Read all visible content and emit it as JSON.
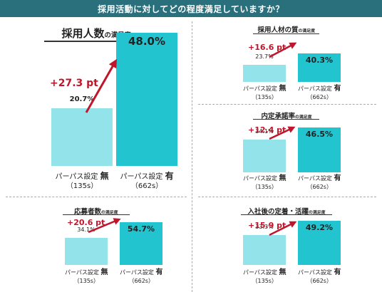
{
  "header": {
    "question": "採用活動に対してどの程度満足していますか？"
  },
  "colors": {
    "bar_without": "#93e3ea",
    "bar_with": "#22c4cf",
    "arrow": "#c0152a",
    "header_bg": "#2a6f7c"
  },
  "chart_data": [
    {
      "type": "bar",
      "title": "採用人数",
      "subtitle": "の満足度",
      "ylim": [
        0,
        100
      ],
      "categories": [
        {
          "label": "パーパス設定",
          "flag": "無",
          "n": "（135s）"
        },
        {
          "label": "パーパス設定",
          "flag": "有",
          "n": "（662s）"
        }
      ],
      "values": [
        20.7,
        48.0
      ],
      "value_labels": [
        "20.7%",
        "48.0%"
      ],
      "delta_label": "+27.3 pt"
    },
    {
      "type": "bar",
      "title": "採用人材の質",
      "subtitle": "の満足度",
      "ylim": [
        0,
        100
      ],
      "categories": [
        {
          "label": "パーパス設定",
          "flag": "無",
          "n": "（135s）"
        },
        {
          "label": "パーパス設定",
          "flag": "有",
          "n": "（662s）"
        }
      ],
      "values": [
        23.7,
        40.3
      ],
      "value_labels": [
        "23.7%",
        "40.3%"
      ],
      "delta_label": "+16.6 pt"
    },
    {
      "type": "bar",
      "title": "内定承諾率",
      "subtitle": "の満足度",
      "ylim": [
        0,
        100
      ],
      "categories": [
        {
          "label": "パーパス設定",
          "flag": "無",
          "n": "（135s）"
        },
        {
          "label": "パーパス設定",
          "flag": "有",
          "n": "（662s）"
        }
      ],
      "values": [
        34.1,
        46.5
      ],
      "value_labels": [
        "34.1%",
        "46.5%"
      ],
      "delta_label": "+12.4 pt"
    },
    {
      "type": "bar",
      "title": "応募者数",
      "subtitle": "の満足度",
      "ylim": [
        0,
        100
      ],
      "categories": [
        {
          "label": "パーパス設定",
          "flag": "無",
          "n": "（135s）"
        },
        {
          "label": "パーパス設定",
          "flag": "有",
          "n": "（662s）"
        }
      ],
      "values": [
        34.1,
        54.7
      ],
      "value_labels": [
        "34.1%",
        "54.7%"
      ],
      "delta_label": "+20.6 pt"
    },
    {
      "type": "bar",
      "title": "入社後の定着・活躍",
      "subtitle": "の満足度",
      "ylim": [
        0,
        100
      ],
      "categories": [
        {
          "label": "パーパス設定",
          "flag": "無",
          "n": "（135s）"
        },
        {
          "label": "パーパス設定",
          "flag": "有",
          "n": "（662s）"
        }
      ],
      "values": [
        33.3,
        49.2
      ],
      "value_labels": [
        "33.3%",
        "49.2%"
      ],
      "delta_label": "+15.9 pt"
    }
  ]
}
